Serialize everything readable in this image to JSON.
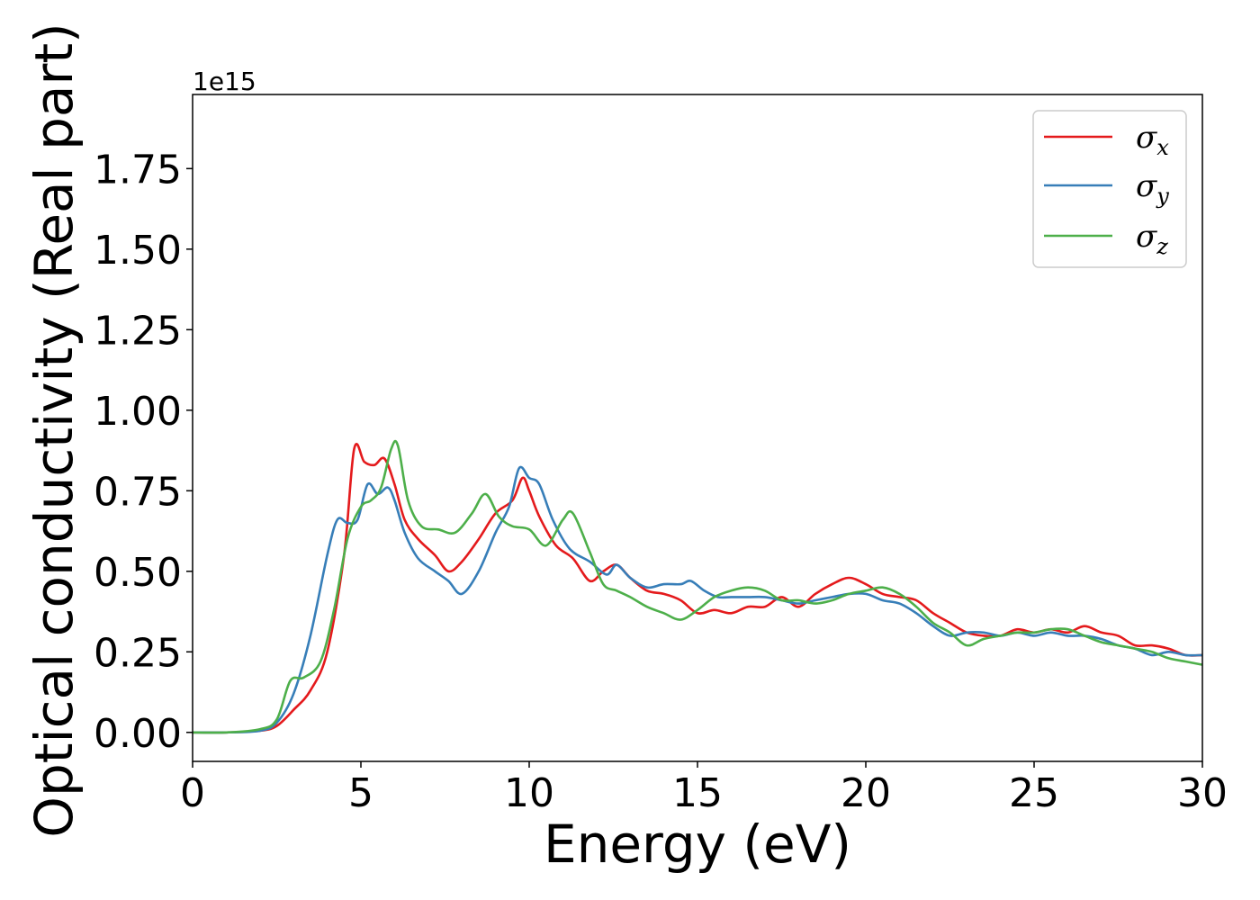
{
  "chart_data": {
    "type": "line",
    "title": "",
    "xlabel": "Energy (eV)",
    "ylabel": "Optical conductivity (Real part)",
    "y_offset_label": "1e15",
    "xlim": [
      0,
      30
    ],
    "ylim": [
      -0.09,
      1.98
    ],
    "xticks": [
      0,
      5,
      10,
      15,
      20,
      25,
      30
    ],
    "xtick_labels": [
      "0",
      "5",
      "10",
      "15",
      "20",
      "25",
      "30"
    ],
    "yticks": [
      0,
      0.25,
      0.5,
      0.75,
      1.0,
      1.25,
      1.5,
      1.75
    ],
    "ytick_labels": [
      "0.00",
      "0.25",
      "0.50",
      "0.75",
      "1.00",
      "1.25",
      "1.50",
      "1.75"
    ],
    "grid": false,
    "legend_position": "top-right",
    "series": [
      {
        "name": "σ_x",
        "legend_main": "σ",
        "legend_sub": "x",
        "color": "#e41a1c",
        "x": [
          0,
          1,
          2,
          2.5,
          3,
          3.5,
          4,
          4.5,
          4.8,
          5.1,
          5.4,
          5.7,
          6.0,
          6.3,
          6.7,
          7.2,
          7.6,
          8.0,
          8.5,
          9.0,
          9.5,
          9.8,
          10.0,
          10.3,
          10.8,
          11.3,
          11.8,
          12.2,
          12.6,
          13.0,
          13.5,
          14.0,
          14.5,
          15.0,
          15.5,
          16.0,
          16.5,
          17.0,
          17.5,
          18.0,
          18.5,
          19.0,
          19.5,
          20.0,
          20.5,
          21.0,
          21.5,
          22.0,
          22.5,
          23.0,
          23.5,
          24.0,
          24.5,
          25.0,
          25.5,
          26.0,
          26.5,
          27.0,
          27.5,
          28.0,
          28.5,
          29.0,
          29.5,
          30.0
        ],
        "y": [
          0.0,
          0.0,
          0.005,
          0.02,
          0.07,
          0.13,
          0.25,
          0.55,
          0.88,
          0.84,
          0.83,
          0.85,
          0.77,
          0.66,
          0.6,
          0.55,
          0.5,
          0.53,
          0.6,
          0.68,
          0.72,
          0.79,
          0.75,
          0.67,
          0.58,
          0.54,
          0.47,
          0.5,
          0.52,
          0.48,
          0.44,
          0.43,
          0.41,
          0.37,
          0.38,
          0.37,
          0.39,
          0.39,
          0.42,
          0.39,
          0.43,
          0.46,
          0.48,
          0.46,
          0.43,
          0.42,
          0.41,
          0.37,
          0.34,
          0.31,
          0.3,
          0.3,
          0.32,
          0.31,
          0.32,
          0.31,
          0.33,
          0.31,
          0.3,
          0.27,
          0.27,
          0.26,
          0.24,
          0.24
        ]
      },
      {
        "name": "σ_y",
        "legend_main": "σ",
        "legend_sub": "y",
        "color": "#377eb8",
        "x": [
          0,
          1,
          2,
          2.5,
          3,
          3.5,
          4,
          4.3,
          4.6,
          4.9,
          5.2,
          5.5,
          5.8,
          6.0,
          6.3,
          6.7,
          7.2,
          7.6,
          8.0,
          8.5,
          9.0,
          9.4,
          9.7,
          10.0,
          10.3,
          10.7,
          11.2,
          11.8,
          12.3,
          12.6,
          13.0,
          13.5,
          14.0,
          14.5,
          14.8,
          15.2,
          15.6,
          16.0,
          16.5,
          17.0,
          17.5,
          18.0,
          18.5,
          19.0,
          19.5,
          20.0,
          20.5,
          21.0,
          21.5,
          22.0,
          22.5,
          23.0,
          23.5,
          24.0,
          24.5,
          25.0,
          25.5,
          26.0,
          26.5,
          27.0,
          27.5,
          28.0,
          28.5,
          29.0,
          29.5,
          30.0
        ],
        "y": [
          0.0,
          0.0,
          0.005,
          0.03,
          0.12,
          0.3,
          0.55,
          0.66,
          0.65,
          0.66,
          0.77,
          0.74,
          0.76,
          0.72,
          0.62,
          0.54,
          0.5,
          0.47,
          0.43,
          0.5,
          0.62,
          0.7,
          0.82,
          0.79,
          0.77,
          0.66,
          0.57,
          0.53,
          0.49,
          0.52,
          0.48,
          0.45,
          0.46,
          0.46,
          0.47,
          0.44,
          0.42,
          0.42,
          0.42,
          0.42,
          0.41,
          0.4,
          0.41,
          0.42,
          0.43,
          0.43,
          0.41,
          0.4,
          0.37,
          0.33,
          0.3,
          0.31,
          0.31,
          0.3,
          0.31,
          0.3,
          0.31,
          0.3,
          0.3,
          0.29,
          0.27,
          0.26,
          0.24,
          0.25,
          0.24,
          0.24
        ]
      },
      {
        "name": "σ_z",
        "legend_main": "σ",
        "legend_sub": "z",
        "color": "#4daf4a",
        "x": [
          0,
          1,
          2,
          2.5,
          2.9,
          3.3,
          3.8,
          4.2,
          4.6,
          5.0,
          5.3,
          5.6,
          5.9,
          6.1,
          6.4,
          6.8,
          7.3,
          7.8,
          8.3,
          8.7,
          9.1,
          9.5,
          10.0,
          10.5,
          11.0,
          11.3,
          11.8,
          12.2,
          12.6,
          13.0,
          13.5,
          14.0,
          14.5,
          15.0,
          15.5,
          16.0,
          16.5,
          17.0,
          17.5,
          18.0,
          18.5,
          19.0,
          19.5,
          20.0,
          20.5,
          21.0,
          21.5,
          22.0,
          22.5,
          23.0,
          23.5,
          24.0,
          24.5,
          25.0,
          25.5,
          26.0,
          26.5,
          27.0,
          27.5,
          28.0,
          28.5,
          29.0,
          29.5,
          30.0
        ],
        "y": [
          0.0,
          0.0,
          0.01,
          0.04,
          0.16,
          0.17,
          0.22,
          0.38,
          0.6,
          0.7,
          0.72,
          0.76,
          0.88,
          0.89,
          0.72,
          0.64,
          0.63,
          0.62,
          0.68,
          0.74,
          0.67,
          0.64,
          0.63,
          0.58,
          0.66,
          0.68,
          0.56,
          0.46,
          0.44,
          0.42,
          0.39,
          0.37,
          0.35,
          0.38,
          0.42,
          0.44,
          0.45,
          0.44,
          0.41,
          0.41,
          0.4,
          0.41,
          0.43,
          0.44,
          0.45,
          0.43,
          0.39,
          0.34,
          0.31,
          0.27,
          0.29,
          0.3,
          0.31,
          0.31,
          0.32,
          0.32,
          0.3,
          0.28,
          0.27,
          0.26,
          0.25,
          0.23,
          0.22,
          0.21
        ]
      }
    ]
  }
}
